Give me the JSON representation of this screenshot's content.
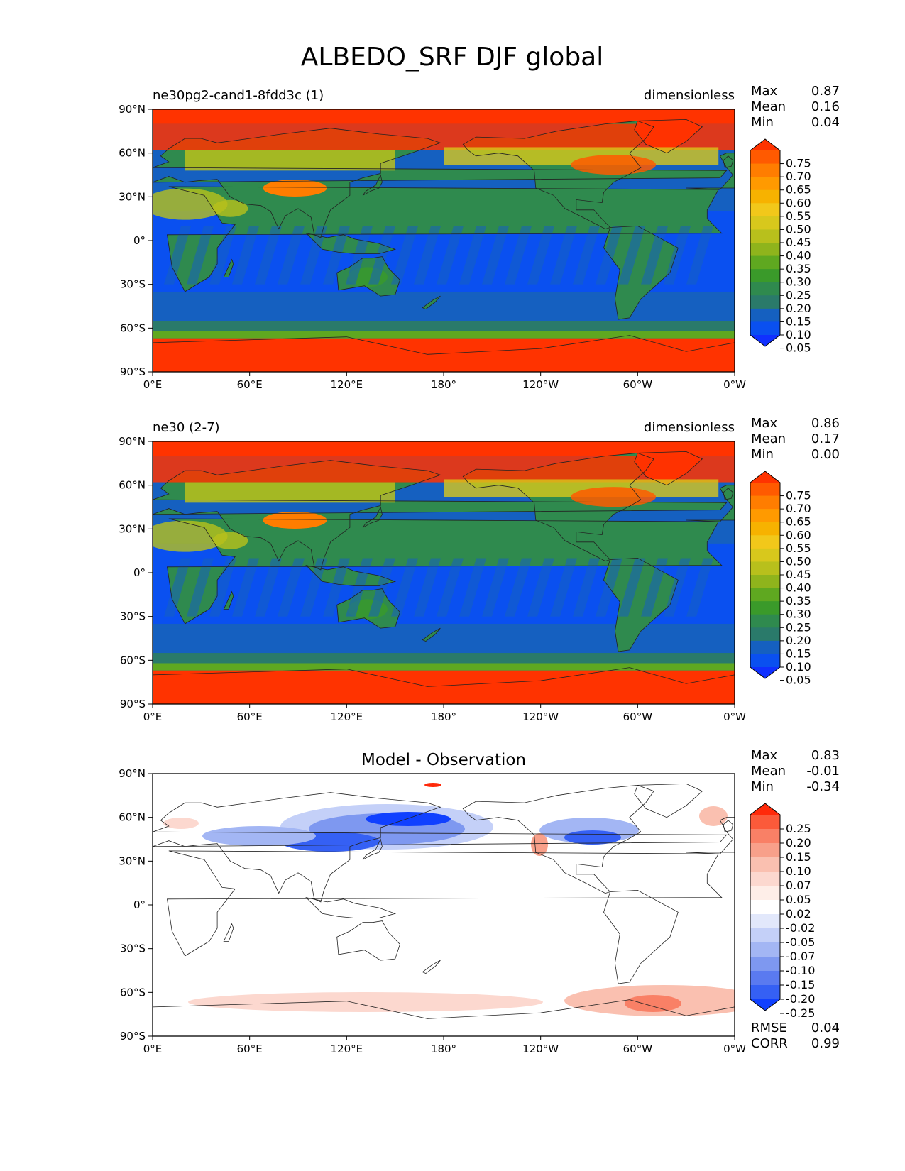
{
  "figure": {
    "title": "ALBEDO_SRF DJF global"
  },
  "chart_data": [
    {
      "type": "heatmap",
      "title": "ne30pg2-cand1-8fdd3c (1)",
      "units": "dimensionless",
      "x_ticks": [
        "0°E",
        "60°E",
        "120°E",
        "180°",
        "120°W",
        "60°W",
        "0°W"
      ],
      "y_ticks": [
        "90°N",
        "60°N",
        "30°N",
        "0°",
        "30°S",
        "60°S",
        "90°S"
      ],
      "stats": [
        {
          "label": "Max",
          "value": "0.87"
        },
        {
          "label": "Mean",
          "value": "0.16"
        },
        {
          "label": "Min",
          "value": "0.04"
        }
      ],
      "colorbar": {
        "levels": [
          "0.75",
          "0.70",
          "0.65",
          "0.60",
          "0.55",
          "0.50",
          "0.45",
          "0.40",
          "0.35",
          "0.30",
          "0.25",
          "0.20",
          "0.15",
          "0.10",
          "0.05"
        ],
        "colors": [
          "#ff3300",
          "#ff5a00",
          "#ff7d00",
          "#ff9a00",
          "#f7b200",
          "#f2c81a",
          "#d8c81c",
          "#b8c01c",
          "#8fb41c",
          "#5fa820",
          "#3a9a2a",
          "#2f8a4e",
          "#2a7a6a",
          "#1560c0",
          "#0a50f0",
          "#1030ff"
        ]
      },
      "field": "model"
    },
    {
      "type": "heatmap",
      "title": "ne30 (2-7)",
      "units": "dimensionless",
      "x_ticks": [
        "0°E",
        "60°E",
        "120°E",
        "180°",
        "120°W",
        "60°W",
        "0°W"
      ],
      "y_ticks": [
        "90°N",
        "60°N",
        "30°N",
        "0°",
        "30°S",
        "60°S",
        "90°S"
      ],
      "stats": [
        {
          "label": "Max",
          "value": "0.86"
        },
        {
          "label": "Mean",
          "value": "0.17"
        },
        {
          "label": "Min",
          "value": "0.00"
        }
      ],
      "colorbar": {
        "levels": [
          "0.75",
          "0.70",
          "0.65",
          "0.60",
          "0.55",
          "0.50",
          "0.45",
          "0.40",
          "0.35",
          "0.30",
          "0.25",
          "0.20",
          "0.15",
          "0.10",
          "0.05"
        ],
        "colors": [
          "#ff3300",
          "#ff5a00",
          "#ff7d00",
          "#ff9a00",
          "#f7b200",
          "#f2c81a",
          "#d8c81c",
          "#b8c01c",
          "#8fb41c",
          "#5fa820",
          "#3a9a2a",
          "#2f8a4e",
          "#2a7a6a",
          "#1560c0",
          "#0a50f0",
          "#1030ff"
        ]
      },
      "field": "observation"
    },
    {
      "type": "heatmap",
      "title": "Model - Observation",
      "units": "",
      "x_ticks": [
        "0°E",
        "60°E",
        "120°E",
        "180°",
        "120°W",
        "60°W",
        "0°W"
      ],
      "y_ticks": [
        "90°N",
        "60°N",
        "30°N",
        "0°",
        "30°S",
        "60°S",
        "90°S"
      ],
      "stats": [
        {
          "label": "Max",
          "value": "0.83"
        },
        {
          "label": "Mean",
          "value": "-0.01"
        },
        {
          "label": "Min",
          "value": "-0.34"
        }
      ],
      "extra_stats": [
        {
          "label": "RMSE",
          "value": "0.04"
        },
        {
          "label": "CORR",
          "value": "0.99"
        }
      ],
      "colorbar": {
        "levels": [
          "0.25",
          "0.20",
          "0.15",
          "0.10",
          "0.07",
          "0.05",
          "0.02",
          "-0.02",
          "-0.05",
          "-0.07",
          "-0.10",
          "-0.15",
          "-0.20",
          "-0.25"
        ],
        "colors": [
          "#ff2a0a",
          "#fb5a3a",
          "#f98066",
          "#f8a08a",
          "#fac0b0",
          "#fcd8cf",
          "#feeee8",
          "#ffffff",
          "#e2e8fb",
          "#c4d0f8",
          "#a3b6f4",
          "#7e98f0",
          "#5a7af0",
          "#3560f4",
          "#1040ff"
        ]
      },
      "field": "difference"
    }
  ]
}
